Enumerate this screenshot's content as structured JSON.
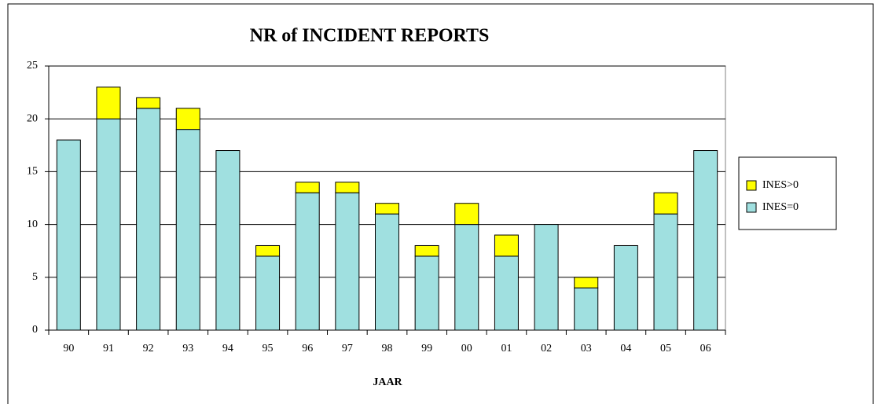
{
  "chart_data": {
    "type": "stacked_bar",
    "title": "NR of INCIDENT REPORTS",
    "x_label": "JAAR",
    "categories": [
      "90",
      "91",
      "92",
      "93",
      "94",
      "95",
      "96",
      "97",
      "98",
      "99",
      "00",
      "01",
      "02",
      "03",
      "04",
      "05",
      "06"
    ],
    "series": [
      {
        "name": "INES=0",
        "color": "#a0e0e0",
        "values": [
          18,
          20,
          21,
          19,
          17,
          7,
          13,
          13,
          11,
          7,
          10,
          7,
          10,
          4,
          8,
          11,
          17
        ]
      },
      {
        "name": "INES>0",
        "color": "#ffff00",
        "values": [
          0,
          3,
          1,
          2,
          0,
          1,
          1,
          1,
          1,
          1,
          2,
          2,
          0,
          1,
          0,
          2,
          0
        ]
      }
    ],
    "ylim": [
      0,
      25
    ],
    "yticks": [
      0,
      5,
      10,
      15,
      20,
      25
    ],
    "grid": true,
    "legend": "right"
  }
}
